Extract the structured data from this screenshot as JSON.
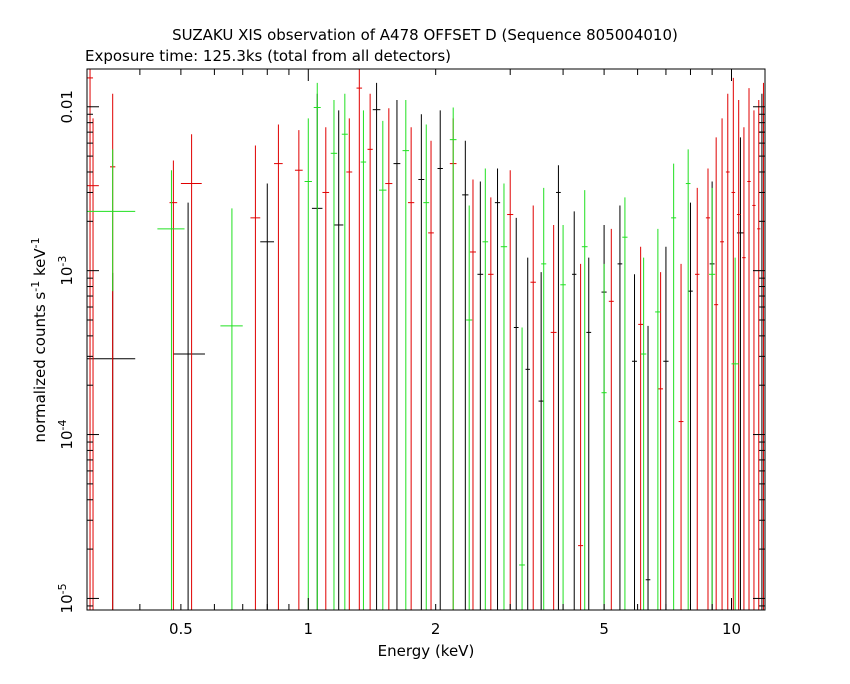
{
  "colors": {
    "series_black": "#000000",
    "series_red": "#e00000",
    "series_green": "#20e020"
  },
  "chart_data": {
    "type": "scatter",
    "title": "SUZAKU XIS observation of A478 OFFSET D (Sequence 805004010)",
    "subtitle": "Exposure time: 125.3ks (total from all detectors)",
    "xlabel": "Energy (keV)",
    "ylabel_main": "normalized counts s",
    "ylabel_sup1": "-1",
    "ylabel_mid": " keV",
    "ylabel_sup2": "-1",
    "x_scale": "log",
    "y_scale": "log",
    "xlim": [
      0.3,
      12.0
    ],
    "ylim": [
      8.5e-06,
      0.017
    ],
    "x_ticks": [
      {
        "value": 0.5,
        "label": "0.5"
      },
      {
        "value": 1,
        "label": "1"
      },
      {
        "value": 2,
        "label": "2"
      },
      {
        "value": 5,
        "label": "5"
      },
      {
        "value": 10,
        "label": "10"
      }
    ],
    "y_ticks": [
      {
        "value": 0.01,
        "label": "0.01"
      },
      {
        "value": 0.001,
        "label_base": "10",
        "label_exp": "-3"
      },
      {
        "value": 0.0001,
        "label_base": "10",
        "label_exp": "-4"
      },
      {
        "value": 1e-05,
        "label_base": "10",
        "label_exp": "-5"
      }
    ],
    "grid": false,
    "series": [
      {
        "color": "#000000",
        "points": [
          {
            "x": 0.345,
            "xlo": 0.3,
            "xhi": 0.39,
            "y": 0.00029,
            "ylo": 8.5e-06,
            "yhi": 0.00097
          },
          {
            "x": 0.52,
            "xlo": 0.48,
            "xhi": 0.57,
            "y": 0.00031,
            "ylo": 8.5e-06,
            "yhi": 0.0026
          },
          {
            "x": 0.8,
            "xlo": 0.77,
            "xhi": 0.83,
            "y": 0.0015,
            "ylo": 8.5e-06,
            "yhi": 0.0034
          },
          {
            "x": 1.05,
            "xlo": 1.02,
            "xhi": 1.08,
            "y": 0.0024,
            "ylo": 8.5e-06,
            "yhi": 0.012
          },
          {
            "x": 1.18,
            "xlo": 1.15,
            "xhi": 1.21,
            "y": 0.0019,
            "ylo": 8.5e-06,
            "yhi": 0.0095
          },
          {
            "x": 1.45,
            "xlo": 1.42,
            "xhi": 1.48,
            "y": 0.0096,
            "ylo": 8.5e-06,
            "yhi": 0.014
          },
          {
            "x": 1.62,
            "xlo": 1.59,
            "xhi": 1.65,
            "y": 0.0045,
            "ylo": 8.5e-06,
            "yhi": 0.011
          },
          {
            "x": 1.85,
            "xlo": 1.82,
            "xhi": 1.88,
            "y": 0.0036,
            "ylo": 8.5e-06,
            "yhi": 0.009
          },
          {
            "x": 2.05,
            "xlo": 2.02,
            "xhi": 2.08,
            "y": 0.0042,
            "ylo": 8.5e-06,
            "yhi": 0.0095
          },
          {
            "x": 2.35,
            "xlo": 2.31,
            "xhi": 2.39,
            "y": 0.0029,
            "ylo": 8.5e-06,
            "yhi": 0.0062
          },
          {
            "x": 2.55,
            "xlo": 2.51,
            "xhi": 2.59,
            "y": 0.00095,
            "ylo": 8.5e-06,
            "yhi": 0.0035
          },
          {
            "x": 2.8,
            "xlo": 2.76,
            "xhi": 2.84,
            "y": 0.0026,
            "ylo": 8.5e-06,
            "yhi": 0.0042
          },
          {
            "x": 3.1,
            "xlo": 3.06,
            "xhi": 3.14,
            "y": 0.00045,
            "ylo": 8.5e-06,
            "yhi": 0.0021
          },
          {
            "x": 3.3,
            "xlo": 3.26,
            "xhi": 3.34,
            "y": 0.00025,
            "ylo": 8.5e-06,
            "yhi": 0.0012
          },
          {
            "x": 3.55,
            "xlo": 3.5,
            "xhi": 3.6,
            "y": 0.00016,
            "ylo": 8.5e-06,
            "yhi": 0.00098
          },
          {
            "x": 3.9,
            "xlo": 3.85,
            "xhi": 3.95,
            "y": 0.003,
            "ylo": 8.5e-06,
            "yhi": 0.0044
          },
          {
            "x": 4.25,
            "xlo": 4.2,
            "xhi": 4.3,
            "y": 0.00095,
            "ylo": 8.5e-06,
            "yhi": 0.0023
          },
          {
            "x": 4.6,
            "xlo": 4.54,
            "xhi": 4.66,
            "y": 0.00042,
            "ylo": 8.5e-06,
            "yhi": 0.0012
          },
          {
            "x": 5.0,
            "xlo": 4.93,
            "xhi": 5.07,
            "y": 0.00074,
            "ylo": 8.5e-06,
            "yhi": 0.0019
          },
          {
            "x": 5.45,
            "xlo": 5.38,
            "xhi": 5.52,
            "y": 0.0011,
            "ylo": 8.5e-06,
            "yhi": 0.0025
          },
          {
            "x": 5.9,
            "xlo": 5.82,
            "xhi": 5.98,
            "y": 0.00028,
            "ylo": 8.5e-06,
            "yhi": 0.00095
          },
          {
            "x": 6.35,
            "xlo": 6.27,
            "xhi": 6.43,
            "y": 1.3e-05,
            "ylo": 8.5e-06,
            "yhi": 0.00046
          },
          {
            "x": 7.0,
            "xlo": 6.9,
            "xhi": 7.1,
            "y": 0.00028,
            "ylo": 8.5e-06,
            "yhi": 0.0014
          },
          {
            "x": 8.0,
            "xlo": 7.9,
            "xhi": 8.1,
            "y": 0.00075,
            "ylo": 8.5e-06,
            "yhi": 0.0026
          },
          {
            "x": 9.0,
            "xlo": 8.88,
            "xhi": 9.12,
            "y": 0.0011,
            "ylo": 8.5e-06,
            "yhi": 0.0035
          },
          {
            "x": 10.5,
            "xlo": 10.3,
            "xhi": 10.7,
            "y": 0.0017,
            "ylo": 8.5e-06,
            "yhi": 0.0065
          },
          {
            "x": 11.8,
            "xlo": 11.6,
            "xhi": 12.0,
            "y": 0.007,
            "ylo": 8.5e-06,
            "yhi": 0.012
          }
        ]
      },
      {
        "color": "#e00000",
        "points": [
          {
            "x": 0.305,
            "xlo": 0.3,
            "xhi": 0.31,
            "y": 0.015,
            "ylo": 8.5e-06,
            "yhi": 0.017
          },
          {
            "x": 0.31,
            "xlo": 0.3,
            "xhi": 0.32,
            "y": 0.0033,
            "ylo": 8.5e-06,
            "yhi": 0.0085
          },
          {
            "x": 0.345,
            "xlo": 0.34,
            "xhi": 0.35,
            "y": 0.0043,
            "ylo": 8.5e-06,
            "yhi": 0.012
          },
          {
            "x": 0.48,
            "xlo": 0.47,
            "xhi": 0.49,
            "y": 0.0026,
            "ylo": 8.5e-06,
            "yhi": 0.0047
          },
          {
            "x": 0.53,
            "xlo": 0.5,
            "xhi": 0.56,
            "y": 0.0034,
            "ylo": 8.5e-06,
            "yhi": 0.0068
          },
          {
            "x": 0.75,
            "xlo": 0.73,
            "xhi": 0.77,
            "y": 0.0021,
            "ylo": 8.5e-06,
            "yhi": 0.0058
          },
          {
            "x": 0.85,
            "xlo": 0.83,
            "xhi": 0.87,
            "y": 0.0045,
            "ylo": 8.5e-06,
            "yhi": 0.0078
          },
          {
            "x": 0.95,
            "xlo": 0.93,
            "xhi": 0.97,
            "y": 0.0041,
            "ylo": 8.5e-06,
            "yhi": 0.0072
          },
          {
            "x": 1.1,
            "xlo": 1.08,
            "xhi": 1.12,
            "y": 0.003,
            "ylo": 8.5e-06,
            "yhi": 0.0075
          },
          {
            "x": 1.25,
            "xlo": 1.23,
            "xhi": 1.27,
            "y": 0.004,
            "ylo": 8.5e-06,
            "yhi": 0.0085
          },
          {
            "x": 1.32,
            "xlo": 1.3,
            "xhi": 1.34,
            "y": 0.013,
            "ylo": 8.5e-06,
            "yhi": 0.017
          },
          {
            "x": 1.4,
            "xlo": 1.38,
            "xhi": 1.42,
            "y": 0.0055,
            "ylo": 8.5e-06,
            "yhi": 0.012
          },
          {
            "x": 1.55,
            "xlo": 1.52,
            "xhi": 1.58,
            "y": 0.0034,
            "ylo": 8.5e-06,
            "yhi": 0.0098
          },
          {
            "x": 1.75,
            "xlo": 1.72,
            "xhi": 1.78,
            "y": 0.0026,
            "ylo": 8.5e-06,
            "yhi": 0.0075
          },
          {
            "x": 1.95,
            "xlo": 1.92,
            "xhi": 1.98,
            "y": 0.0017,
            "ylo": 8.5e-06,
            "yhi": 0.0062
          },
          {
            "x": 2.2,
            "xlo": 2.16,
            "xhi": 2.24,
            "y": 0.0045,
            "ylo": 8.5e-06,
            "yhi": 0.0085
          },
          {
            "x": 2.45,
            "xlo": 2.41,
            "xhi": 2.49,
            "y": 0.0013,
            "ylo": 8.5e-06,
            "yhi": 0.0036
          },
          {
            "x": 2.7,
            "xlo": 2.66,
            "xhi": 2.74,
            "y": 0.00095,
            "ylo": 8.5e-06,
            "yhi": 0.0028
          },
          {
            "x": 3.0,
            "xlo": 2.95,
            "xhi": 3.05,
            "y": 0.0022,
            "ylo": 8.5e-06,
            "yhi": 0.0041
          },
          {
            "x": 3.4,
            "xlo": 3.35,
            "xhi": 3.45,
            "y": 0.00085,
            "ylo": 8.5e-06,
            "yhi": 0.0025
          },
          {
            "x": 3.8,
            "xlo": 3.74,
            "xhi": 3.86,
            "y": 0.00042,
            "ylo": 8.5e-06,
            "yhi": 0.0019
          },
          {
            "x": 4.4,
            "xlo": 4.34,
            "xhi": 4.46,
            "y": 2.1e-05,
            "ylo": 8.5e-06,
            "yhi": 0.0011
          },
          {
            "x": 5.2,
            "xlo": 5.13,
            "xhi": 5.27,
            "y": 0.00065,
            "ylo": 8.5e-06,
            "yhi": 0.0018
          },
          {
            "x": 6.1,
            "xlo": 6.02,
            "xhi": 6.18,
            "y": 0.00047,
            "ylo": 8.5e-06,
            "yhi": 0.0014
          },
          {
            "x": 6.8,
            "xlo": 6.71,
            "xhi": 6.89,
            "y": 0.00019,
            "ylo": 8.5e-06,
            "yhi": 0.00098
          },
          {
            "x": 7.6,
            "xlo": 7.5,
            "xhi": 7.7,
            "y": 0.00012,
            "ylo": 8.5e-06,
            "yhi": 0.0011
          },
          {
            "x": 8.3,
            "xlo": 8.2,
            "xhi": 8.4,
            "y": 0.00095,
            "ylo": 8.5e-06,
            "yhi": 0.0032
          },
          {
            "x": 8.8,
            "xlo": 8.7,
            "xhi": 8.9,
            "y": 0.0021,
            "ylo": 8.5e-06,
            "yhi": 0.0042
          },
          {
            "x": 9.2,
            "xlo": 9.1,
            "xhi": 9.3,
            "y": 0.00062,
            "ylo": 8.5e-06,
            "yhi": 0.0065
          },
          {
            "x": 9.5,
            "xlo": 9.4,
            "xhi": 9.6,
            "y": 0.0015,
            "ylo": 8.5e-06,
            "yhi": 0.0085
          },
          {
            "x": 9.8,
            "xlo": 9.7,
            "xhi": 9.9,
            "y": 0.004,
            "ylo": 8.5e-06,
            "yhi": 0.012
          },
          {
            "x": 10.1,
            "xlo": 10.0,
            "xhi": 10.2,
            "y": 0.003,
            "ylo": 8.5e-06,
            "yhi": 0.015
          },
          {
            "x": 10.4,
            "xlo": 10.3,
            "xhi": 10.5,
            "y": 0.0022,
            "ylo": 8.5e-06,
            "yhi": 0.011
          },
          {
            "x": 10.7,
            "xlo": 10.6,
            "xhi": 10.8,
            "y": 0.0012,
            "ylo": 8.5e-06,
            "yhi": 0.0075
          },
          {
            "x": 11.0,
            "xlo": 10.9,
            "xhi": 11.1,
            "y": 0.0035,
            "ylo": 8.5e-06,
            "yhi": 0.013
          },
          {
            "x": 11.3,
            "xlo": 11.2,
            "xhi": 11.4,
            "y": 0.0025,
            "ylo": 8.5e-06,
            "yhi": 0.0095
          },
          {
            "x": 11.6,
            "xlo": 11.5,
            "xhi": 11.7,
            "y": 0.0018,
            "ylo": 8.5e-06,
            "yhi": 0.011
          },
          {
            "x": 11.9,
            "xlo": 11.8,
            "xhi": 12.0,
            "y": 0.003,
            "ylo": 8.5e-06,
            "yhi": 0.014
          }
        ]
      },
      {
        "color": "#20e020",
        "points": [
          {
            "x": 0.345,
            "xlo": 0.3,
            "xhi": 0.39,
            "y": 0.0023,
            "ylo": 0.00075,
            "yhi": 0.0055
          },
          {
            "x": 0.475,
            "xlo": 0.44,
            "xhi": 0.51,
            "y": 0.0018,
            "ylo": 8.5e-06,
            "yhi": 0.0041
          },
          {
            "x": 0.66,
            "xlo": 0.62,
            "xhi": 0.7,
            "y": 0.00046,
            "ylo": 8.5e-06,
            "yhi": 0.0024
          },
          {
            "x": 1.0,
            "xlo": 0.98,
            "xhi": 1.02,
            "y": 0.0035,
            "ylo": 8.5e-06,
            "yhi": 0.0085
          },
          {
            "x": 1.05,
            "xlo": 1.03,
            "xhi": 1.07,
            "y": 0.0099,
            "ylo": 8.5e-06,
            "yhi": 0.014
          },
          {
            "x": 1.15,
            "xlo": 1.13,
            "xhi": 1.17,
            "y": 0.0052,
            "ylo": 8.5e-06,
            "yhi": 0.011
          },
          {
            "x": 1.22,
            "xlo": 1.2,
            "xhi": 1.24,
            "y": 0.0068,
            "ylo": 8.5e-06,
            "yhi": 0.012
          },
          {
            "x": 1.35,
            "xlo": 1.33,
            "xhi": 1.37,
            "y": 0.0046,
            "ylo": 8.5e-06,
            "yhi": 0.0095
          },
          {
            "x": 1.5,
            "xlo": 1.47,
            "xhi": 1.53,
            "y": 0.0031,
            "ylo": 8.5e-06,
            "yhi": 0.0082
          },
          {
            "x": 1.7,
            "xlo": 1.67,
            "xhi": 1.73,
            "y": 0.0054,
            "ylo": 8.5e-06,
            "yhi": 0.011
          },
          {
            "x": 1.9,
            "xlo": 1.87,
            "xhi": 1.93,
            "y": 0.0026,
            "ylo": 8.5e-06,
            "yhi": 0.0078
          },
          {
            "x": 2.2,
            "xlo": 2.16,
            "xhi": 2.24,
            "y": 0.0063,
            "ylo": 8.5e-06,
            "yhi": 0.0099
          },
          {
            "x": 2.4,
            "xlo": 2.36,
            "xhi": 2.44,
            "y": 0.0005,
            "ylo": 8.5e-06,
            "yhi": 0.0025
          },
          {
            "x": 2.62,
            "xlo": 2.58,
            "xhi": 2.66,
            "y": 0.0015,
            "ylo": 8.5e-06,
            "yhi": 0.0042
          },
          {
            "x": 2.9,
            "xlo": 2.85,
            "xhi": 2.95,
            "y": 0.0014,
            "ylo": 8.5e-06,
            "yhi": 0.0034
          },
          {
            "x": 3.2,
            "xlo": 3.15,
            "xhi": 3.25,
            "y": 1.6e-05,
            "ylo": 8.5e-06,
            "yhi": 0.00045
          },
          {
            "x": 3.6,
            "xlo": 3.55,
            "xhi": 3.65,
            "y": 0.0011,
            "ylo": 8.5e-06,
            "yhi": 0.0032
          },
          {
            "x": 4.0,
            "xlo": 3.94,
            "xhi": 4.06,
            "y": 0.00082,
            "ylo": 8.5e-06,
            "yhi": 0.0019
          },
          {
            "x": 4.5,
            "xlo": 4.43,
            "xhi": 4.57,
            "y": 0.0014,
            "ylo": 8.5e-06,
            "yhi": 0.0031
          },
          {
            "x": 5.0,
            "xlo": 4.93,
            "xhi": 5.07,
            "y": 0.00018,
            "ylo": 8.5e-06,
            "yhi": 0.0011
          },
          {
            "x": 5.6,
            "xlo": 5.52,
            "xhi": 5.68,
            "y": 0.0016,
            "ylo": 8.5e-06,
            "yhi": 0.0028
          },
          {
            "x": 6.2,
            "xlo": 6.11,
            "xhi": 6.29,
            "y": 0.00031,
            "ylo": 8.5e-06,
            "yhi": 0.0012
          },
          {
            "x": 6.7,
            "xlo": 6.6,
            "xhi": 6.8,
            "y": 0.00056,
            "ylo": 8.5e-06,
            "yhi": 0.0018
          },
          {
            "x": 7.3,
            "xlo": 7.2,
            "xhi": 7.4,
            "y": 0.0021,
            "ylo": 8.5e-06,
            "yhi": 0.0045
          },
          {
            "x": 7.9,
            "xlo": 7.8,
            "xhi": 8.0,
            "y": 0.0034,
            "ylo": 8.5e-06,
            "yhi": 0.0055
          },
          {
            "x": 9.0,
            "xlo": 8.85,
            "xhi": 9.15,
            "y": 0.00095,
            "ylo": 8.5e-06,
            "yhi": 0.0032
          },
          {
            "x": 10.2,
            "xlo": 10.0,
            "xhi": 10.4,
            "y": 0.00027,
            "ylo": 8.5e-06,
            "yhi": 0.0012
          }
        ]
      }
    ]
  }
}
